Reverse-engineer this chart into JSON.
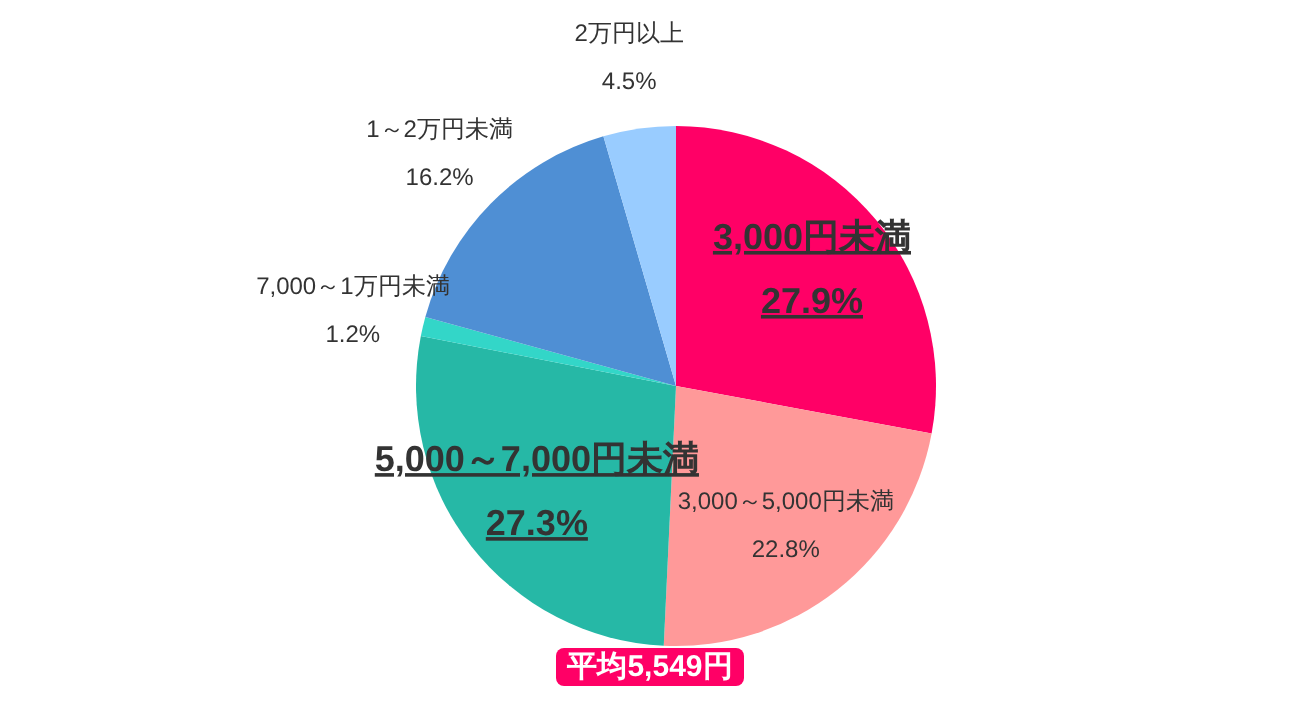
{
  "chart_data": {
    "type": "pie",
    "categories": [
      "3,000円未満",
      "3,000～5,000円未満",
      "5,000～7,000円未満",
      "7,000～1万円未満",
      "1～2万円未満",
      "2万円以上"
    ],
    "values": [
      27.9,
      22.8,
      27.3,
      1.2,
      16.2,
      4.5
    ],
    "value_labels": [
      "27.9%",
      "22.8%",
      "27.3%",
      "1.2%",
      "16.2%",
      "4.5%"
    ],
    "colors": [
      "#ff0066",
      "#ff9999",
      "#26b8a6",
      "#33d6c8",
      "#4f8fd4",
      "#99ccff"
    ],
    "annotations": [
      "平均5,549円"
    ],
    "legend": false
  }
}
